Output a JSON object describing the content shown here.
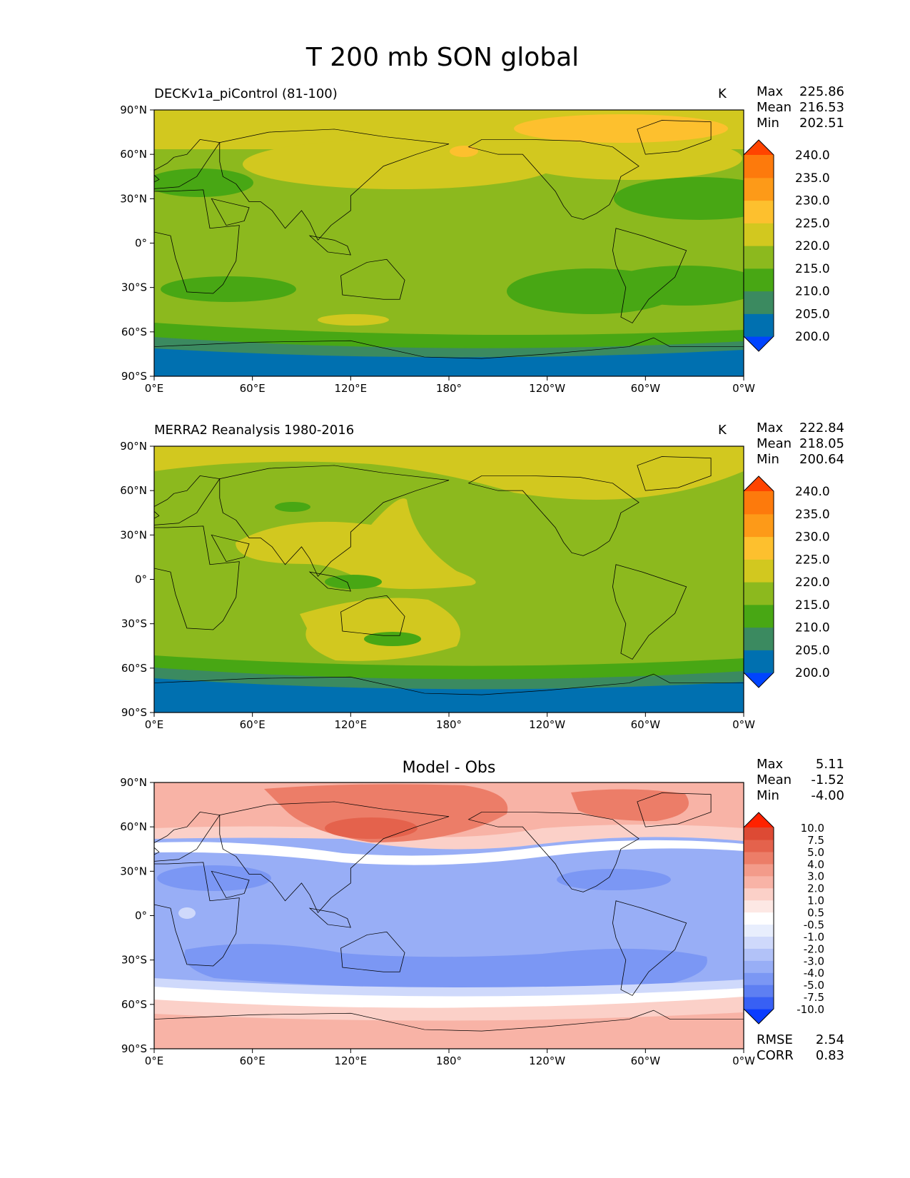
{
  "title": "T 200 mb SON global",
  "x_ticks": [
    "0°E",
    "60°E",
    "120°E",
    "180°",
    "120°W",
    "60°W",
    "0°W"
  ],
  "y_ticks": [
    "90°N",
    "60°N",
    "30°N",
    "0°",
    "30°S",
    "60°S",
    "90°S"
  ],
  "colors": {
    "sequential": [
      "#0044ff",
      "#0070b0",
      "#3b8a60",
      "#48a714",
      "#8cb91e",
      "#d2c81f",
      "#fdc02e",
      "#fd9a18",
      "#fd7a0c",
      "#ff4400"
    ],
    "diverging": [
      "#0a3cff",
      "#3860f4",
      "#5e7ff2",
      "#7b97f4",
      "#98aef6",
      "#b2c2f8",
      "#cfd9fb",
      "#e8eefd",
      "#ffffff",
      "#fde8e4",
      "#fbd0c8",
      "#f8b3a6",
      "#f39b8a",
      "#ec7d68",
      "#e4624c",
      "#dd4a34",
      "#ff2200"
    ]
  },
  "panels": [
    {
      "id": "model",
      "title": "DECKv1a_piControl (81-100)",
      "units": "K",
      "stats": [
        {
          "label": "Max",
          "value": "225.86"
        },
        {
          "label": "Mean",
          "value": "216.53"
        },
        {
          "label": "Min",
          "value": "202.51"
        }
      ],
      "colorbar": [
        "200.0",
        "205.0",
        "210.0",
        "215.0",
        "220.0",
        "225.0",
        "230.0",
        "235.0",
        "240.0"
      ]
    },
    {
      "id": "obs",
      "title": "MERRA2 Reanalysis 1980-2016",
      "units": "K",
      "stats": [
        {
          "label": "Max",
          "value": "222.84"
        },
        {
          "label": "Mean",
          "value": "218.05"
        },
        {
          "label": "Min",
          "value": "200.64"
        }
      ],
      "colorbar": [
        "200.0",
        "205.0",
        "210.0",
        "215.0",
        "220.0",
        "225.0",
        "230.0",
        "235.0",
        "240.0"
      ]
    },
    {
      "id": "diff",
      "title": "Model - Obs",
      "units": "",
      "stats": [
        {
          "label": "Max",
          "value": "5.11"
        },
        {
          "label": "Mean",
          "value": "-1.52"
        },
        {
          "label": "Min",
          "value": "-4.00"
        }
      ],
      "colorbar": [
        "-10.0",
        "-7.5",
        "-5.0",
        "-4.0",
        "-3.0",
        "-2.0",
        "-1.0",
        "-0.5",
        "0.5",
        "1.0",
        "2.0",
        "3.0",
        "4.0",
        "5.0",
        "7.5",
        "10.0"
      ],
      "extra_stats": [
        {
          "label": "RMSE",
          "value": "2.54"
        },
        {
          "label": "CORR",
          "value": "0.83"
        }
      ]
    }
  ],
  "chart_data": [
    {
      "type": "heatmap",
      "title": "DECKv1a_piControl (81-100)",
      "units": "K",
      "xlim": [
        0,
        360
      ],
      "ylim": [
        -90,
        90
      ],
      "levels": [
        200,
        205,
        210,
        215,
        220,
        225,
        230,
        235,
        240
      ],
      "zonal_mean_profile": {
        "lat": [
          -90,
          -75,
          -60,
          -45,
          -30,
          -15,
          0,
          15,
          30,
          45,
          60,
          75,
          90
        ],
        "value": [
          204,
          207,
          211,
          214,
          213,
          214,
          215,
          215,
          214,
          217,
          219,
          221,
          222
        ]
      },
      "stats": {
        "max": 225.86,
        "mean": 216.53,
        "min": 202.51
      }
    },
    {
      "type": "heatmap",
      "title": "MERRA2 Reanalysis 1980-2016",
      "units": "K",
      "xlim": [
        0,
        360
      ],
      "ylim": [
        -90,
        90
      ],
      "levels": [
        200,
        205,
        210,
        215,
        220,
        225,
        230,
        235,
        240
      ],
      "zonal_mean_profile": {
        "lat": [
          -90,
          -75,
          -60,
          -45,
          -30,
          -15,
          0,
          15,
          30,
          45,
          60,
          75,
          90
        ],
        "value": [
          203,
          206,
          211,
          216,
          218,
          219,
          218,
          219,
          218,
          217,
          217,
          219,
          221
        ]
      },
      "stats": {
        "max": 222.84,
        "mean": 218.05,
        "min": 200.64
      }
    },
    {
      "type": "heatmap",
      "title": "Model - Obs",
      "units": "",
      "xlim": [
        0,
        360
      ],
      "ylim": [
        -90,
        90
      ],
      "levels": [
        -10,
        -7.5,
        -5,
        -4,
        -3,
        -2,
        -1,
        -0.5,
        0.5,
        1,
        2,
        3,
        4,
        5,
        7.5,
        10
      ],
      "zonal_mean_profile": {
        "lat": [
          -90,
          -75,
          -60,
          -50,
          -40,
          -30,
          -15,
          0,
          15,
          30,
          45,
          60,
          75,
          90
        ],
        "value": [
          1.5,
          1.5,
          0.8,
          0.2,
          -2.5,
          -3.5,
          -2.5,
          -2.5,
          -2.8,
          -3,
          -1,
          2.5,
          2.5,
          2
        ]
      },
      "stats": {
        "max": 5.11,
        "mean": -1.52,
        "min": -4.0,
        "rmse": 2.54,
        "corr": 0.83
      }
    }
  ]
}
